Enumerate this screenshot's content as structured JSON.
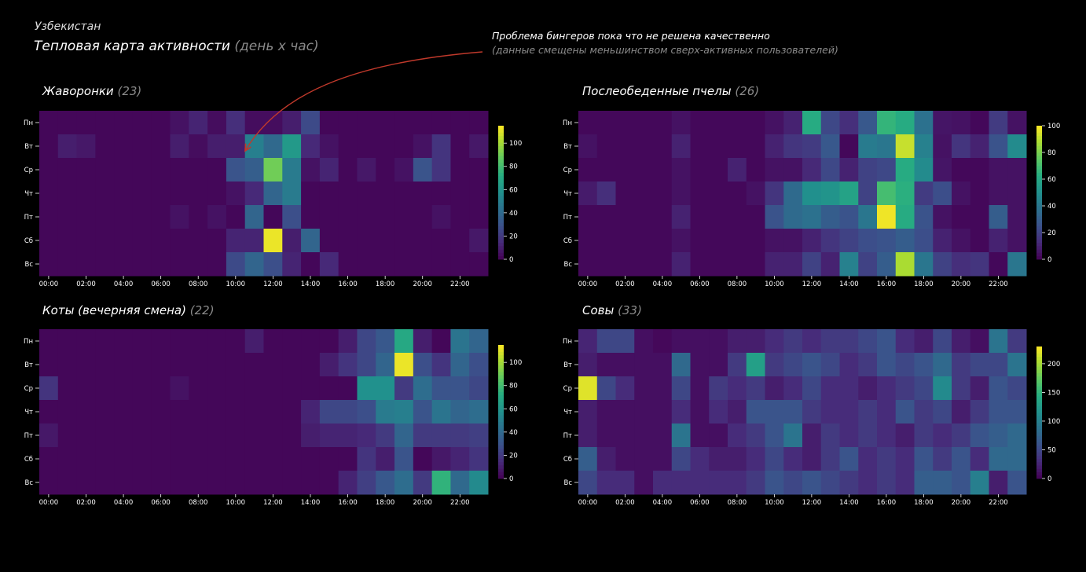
{
  "header": {
    "country": "Узбекистан",
    "title_main": "Тепловая карта активности",
    "title_suffix": "(день x час)",
    "annotation_title": "Проблема бингеров пока что не решена качественно",
    "annotation_subtitle": "(данные смещены меньшинством сверх-активных пользователей)"
  },
  "colors": {
    "background": "#000000",
    "arrow": "#c0392b",
    "colormap": "viridis"
  },
  "chart_data": [
    {
      "type": "heatmap",
      "name": "Жаворонки",
      "count": "(23)",
      "rows": [
        "Пн",
        "Вт",
        "Ср",
        "Чт",
        "Пт",
        "Сб",
        "Вс"
      ],
      "x_ticks": [
        "00:00",
        "02:00",
        "04:00",
        "06:00",
        "08:00",
        "10:00",
        "12:00",
        "14:00",
        "16:00",
        "18:00",
        "20:00",
        "22:00"
      ],
      "colorbar_ticks": [
        0,
        20,
        40,
        60,
        80,
        100
      ],
      "vmax": 115,
      "values": [
        [
          2,
          2,
          2,
          2,
          2,
          2,
          2,
          6,
          12,
          4,
          16,
          4,
          4,
          10,
          26,
          2,
          2,
          2,
          2,
          2,
          2,
          2,
          2,
          2
        ],
        [
          2,
          10,
          8,
          2,
          2,
          2,
          2,
          10,
          4,
          10,
          10,
          50,
          40,
          62,
          14,
          6,
          2,
          2,
          2,
          2,
          6,
          18,
          2,
          8
        ],
        [
          2,
          2,
          2,
          2,
          2,
          2,
          2,
          2,
          2,
          2,
          30,
          35,
          90,
          48,
          6,
          12,
          2,
          8,
          2,
          6,
          30,
          18,
          2,
          2
        ],
        [
          2,
          2,
          2,
          2,
          2,
          2,
          2,
          2,
          2,
          2,
          6,
          14,
          38,
          48,
          2,
          2,
          2,
          2,
          2,
          2,
          2,
          2,
          2,
          2
        ],
        [
          2,
          2,
          2,
          2,
          2,
          2,
          2,
          6,
          2,
          6,
          2,
          38,
          2,
          28,
          2,
          2,
          2,
          2,
          2,
          2,
          2,
          6,
          2,
          2
        ],
        [
          2,
          2,
          2,
          2,
          2,
          2,
          2,
          2,
          2,
          2,
          12,
          12,
          112,
          10,
          38,
          2,
          2,
          2,
          2,
          2,
          2,
          2,
          2,
          8
        ],
        [
          2,
          2,
          2,
          2,
          2,
          2,
          2,
          2,
          2,
          2,
          26,
          38,
          28,
          12,
          2,
          14,
          2,
          2,
          2,
          2,
          2,
          2,
          2,
          2
        ]
      ]
    },
    {
      "type": "heatmap",
      "name": "Послеобеденные пчелы",
      "count": "(26)",
      "rows": [
        "Пн",
        "Вт",
        "Ср",
        "Чт",
        "Пт",
        "Сб",
        "Вс"
      ],
      "x_ticks": [
        "00:00",
        "02:00",
        "04:00",
        "06:00",
        "08:00",
        "10:00",
        "12:00",
        "14:00",
        "16:00",
        "18:00",
        "20:00",
        "22:00"
      ],
      "colorbar_ticks": [
        0,
        20,
        40,
        60,
        80,
        100
      ],
      "vmax": 100,
      "values": [
        [
          2,
          2,
          2,
          2,
          2,
          5,
          2,
          2,
          2,
          2,
          5,
          10,
          62,
          22,
          14,
          28,
          66,
          62,
          38,
          6,
          5,
          2,
          18,
          5
        ],
        [
          5,
          2,
          2,
          2,
          2,
          10,
          2,
          2,
          2,
          2,
          10,
          16,
          18,
          28,
          2,
          42,
          40,
          92,
          44,
          5,
          16,
          10,
          26,
          48
        ],
        [
          2,
          2,
          2,
          2,
          2,
          5,
          2,
          2,
          10,
          2,
          5,
          5,
          12,
          22,
          10,
          20,
          22,
          62,
          48,
          6,
          2,
          2,
          5,
          5
        ],
        [
          8,
          14,
          2,
          2,
          2,
          5,
          2,
          2,
          2,
          5,
          16,
          35,
          50,
          52,
          58,
          20,
          70,
          64,
          18,
          24,
          5,
          2,
          5,
          5
        ],
        [
          2,
          2,
          2,
          2,
          2,
          10,
          2,
          2,
          2,
          2,
          26,
          35,
          38,
          30,
          26,
          40,
          98,
          62,
          26,
          5,
          2,
          2,
          30,
          5
        ],
        [
          2,
          2,
          2,
          2,
          2,
          5,
          2,
          2,
          2,
          2,
          5,
          5,
          10,
          16,
          20,
          24,
          26,
          30,
          24,
          10,
          5,
          2,
          10,
          5
        ],
        [
          2,
          2,
          2,
          2,
          2,
          10,
          2,
          2,
          2,
          2,
          10,
          10,
          20,
          10,
          44,
          20,
          30,
          88,
          40,
          20,
          14,
          16,
          2,
          40
        ]
      ]
    },
    {
      "type": "heatmap",
      "name": "Коты (вечерняя смена)",
      "count": "(22)",
      "rows": [
        "Пн",
        "Вт",
        "Ср",
        "Чт",
        "Пт",
        "Сб",
        "Вс"
      ],
      "x_ticks": [
        "00:00",
        "02:00",
        "04:00",
        "06:00",
        "08:00",
        "10:00",
        "12:00",
        "14:00",
        "16:00",
        "18:00",
        "20:00",
        "22:00"
      ],
      "colorbar_ticks": [
        0,
        20,
        40,
        60,
        80,
        100
      ],
      "vmax": 115,
      "values": [
        [
          2,
          2,
          2,
          2,
          2,
          2,
          2,
          2,
          2,
          2,
          2,
          10,
          2,
          2,
          2,
          2,
          10,
          25,
          32,
          70,
          10,
          2,
          45,
          38
        ],
        [
          2,
          2,
          2,
          2,
          2,
          2,
          2,
          2,
          2,
          2,
          2,
          2,
          2,
          2,
          2,
          10,
          18,
          25,
          38,
          112,
          28,
          18,
          38,
          28
        ],
        [
          18,
          2,
          2,
          2,
          2,
          2,
          2,
          6,
          2,
          2,
          2,
          2,
          2,
          2,
          2,
          2,
          2,
          58,
          58,
          20,
          42,
          30,
          30,
          25
        ],
        [
          2,
          2,
          2,
          2,
          2,
          2,
          2,
          2,
          2,
          2,
          2,
          2,
          2,
          2,
          12,
          25,
          25,
          28,
          48,
          50,
          30,
          45,
          38,
          42
        ],
        [
          8,
          2,
          2,
          2,
          2,
          2,
          2,
          2,
          2,
          2,
          2,
          2,
          2,
          2,
          10,
          12,
          12,
          14,
          20,
          38,
          20,
          20,
          20,
          22
        ],
        [
          2,
          2,
          2,
          2,
          2,
          2,
          2,
          2,
          2,
          2,
          2,
          2,
          2,
          2,
          2,
          2,
          2,
          18,
          10,
          30,
          2,
          8,
          12,
          18
        ],
        [
          2,
          2,
          2,
          2,
          2,
          2,
          2,
          2,
          2,
          2,
          2,
          2,
          2,
          2,
          2,
          2,
          12,
          22,
          32,
          42,
          20,
          75,
          40,
          55
        ]
      ]
    },
    {
      "type": "heatmap",
      "name": "Совы",
      "count": "(33)",
      "rows": [
        "Пн",
        "Вт",
        "Ср",
        "Чт",
        "Пт",
        "Сб",
        "Вс"
      ],
      "x_ticks": [
        "00:00",
        "02:00",
        "04:00",
        "06:00",
        "08:00",
        "10:00",
        "12:00",
        "14:00",
        "16:00",
        "18:00",
        "20:00",
        "22:00"
      ],
      "colorbar_ticks": [
        0,
        50,
        100,
        150,
        200
      ],
      "vmax": 230,
      "values": [
        [
          25,
          50,
          50,
          10,
          5,
          10,
          10,
          10,
          20,
          20,
          30,
          40,
          30,
          40,
          40,
          50,
          60,
          30,
          20,
          50,
          20,
          10,
          90,
          40
        ],
        [
          20,
          10,
          10,
          10,
          10,
          80,
          10,
          10,
          40,
          130,
          40,
          50,
          60,
          50,
          30,
          40,
          60,
          50,
          60,
          80,
          40,
          50,
          50,
          90
        ],
        [
          220,
          50,
          30,
          10,
          10,
          50,
          10,
          40,
          30,
          40,
          20,
          30,
          50,
          30,
          30,
          20,
          30,
          40,
          50,
          110,
          40,
          20,
          60,
          50
        ],
        [
          20,
          10,
          10,
          10,
          10,
          30,
          10,
          30,
          20,
          60,
          60,
          60,
          40,
          30,
          30,
          40,
          30,
          60,
          40,
          50,
          20,
          40,
          60,
          60
        ],
        [
          20,
          10,
          10,
          10,
          10,
          90,
          10,
          10,
          30,
          40,
          60,
          90,
          20,
          40,
          30,
          40,
          30,
          20,
          40,
          30,
          40,
          60,
          70,
          80
        ],
        [
          70,
          20,
          10,
          10,
          10,
          50,
          30,
          20,
          20,
          30,
          50,
          30,
          20,
          40,
          60,
          30,
          40,
          30,
          60,
          40,
          60,
          30,
          80,
          80
        ],
        [
          50,
          30,
          30,
          10,
          30,
          30,
          30,
          30,
          30,
          40,
          60,
          50,
          60,
          50,
          40,
          30,
          40,
          30,
          70,
          70,
          60,
          100,
          20,
          60
        ]
      ]
    }
  ]
}
